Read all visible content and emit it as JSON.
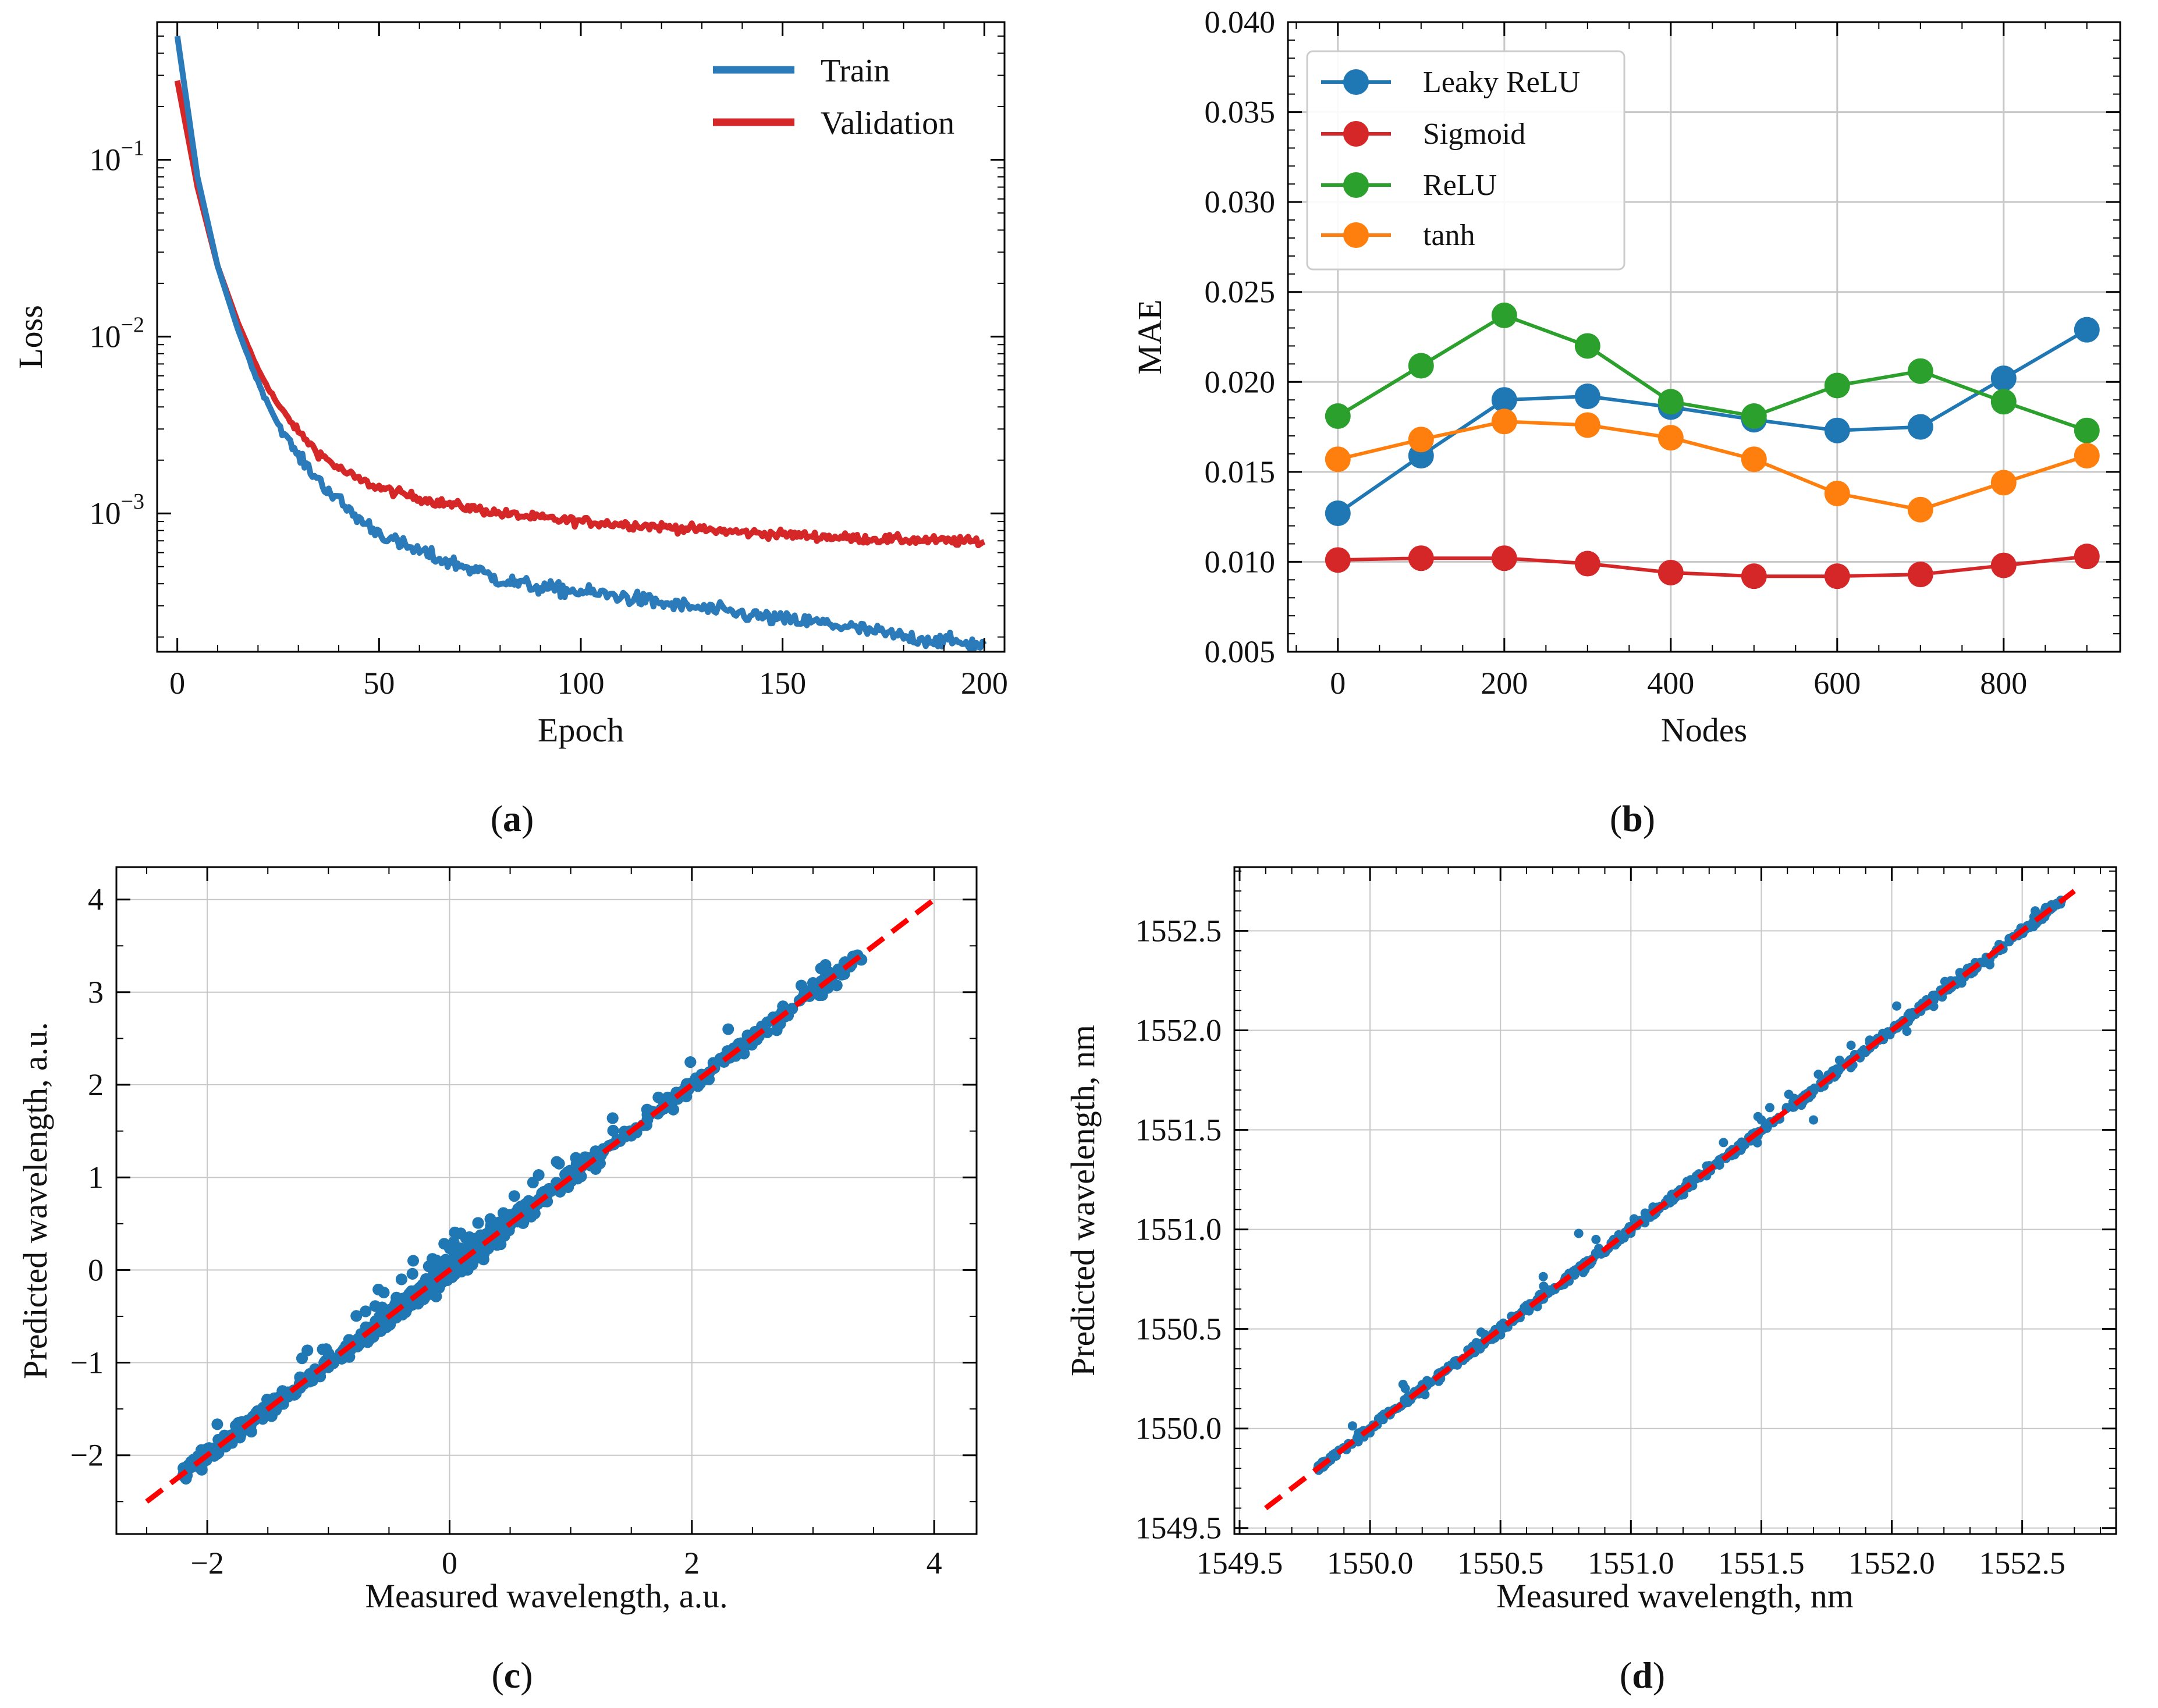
{
  "colors": {
    "train": "#2b7bba",
    "validation": "#d62728",
    "leaky_relu": "#1f77b4",
    "sigmoid": "#d62728",
    "relu": "#2ca02c",
    "tanh": "#ff7f0e",
    "scatter": "#1f77b4",
    "ideal": "#ff0000",
    "grid": "#c8c8c8"
  },
  "chart_data": [
    {
      "id": "a",
      "type": "line",
      "caption_letter": "a",
      "xlabel": "Epoch",
      "ylabel": "Loss",
      "yscale": "log",
      "xlim": [
        -5,
        205
      ],
      "ylim": [
        0.000165,
        0.6
      ],
      "xticks": [
        0,
        50,
        100,
        150,
        200
      ],
      "xtick_labels": [
        "0",
        "50",
        "100",
        "150",
        "200"
      ],
      "yticks": [
        0.1,
        0.01,
        0.001
      ],
      "ytick_base": "10",
      "ytick_exponents": [
        "−1",
        "−2",
        "−3"
      ],
      "grid": false,
      "legend_position": "top-right",
      "series": [
        {
          "name": "Train",
          "x": [
            0,
            5,
            10,
            15,
            20,
            25,
            30,
            35,
            40,
            45,
            50,
            55,
            60,
            65,
            70,
            75,
            80,
            85,
            90,
            95,
            100,
            110,
            120,
            130,
            140,
            150,
            160,
            170,
            180,
            190,
            200
          ],
          "y": [
            0.5,
            0.08,
            0.025,
            0.011,
            0.0055,
            0.0032,
            0.0021,
            0.00155,
            0.00118,
            0.00093,
            0.00078,
            0.00067,
            0.00061,
            0.00055,
            0.00051,
            0.00047,
            0.00042,
            0.0004,
            0.00038,
            0.00037,
            0.00036,
            0.00034,
            0.00031,
            0.00029,
            0.00027,
            0.00025,
            0.00024,
            0.00022,
            0.0002,
            0.00019,
            0.00018
          ]
        },
        {
          "name": "Validation",
          "x": [
            0,
            5,
            10,
            15,
            20,
            25,
            30,
            35,
            40,
            45,
            50,
            55,
            60,
            65,
            70,
            75,
            80,
            85,
            90,
            95,
            100,
            110,
            120,
            130,
            140,
            150,
            160,
            170,
            180,
            190,
            200
          ],
          "y": [
            0.28,
            0.07,
            0.025,
            0.012,
            0.0065,
            0.0041,
            0.0029,
            0.0022,
            0.0018,
            0.00155,
            0.0014,
            0.0013,
            0.00122,
            0.00115,
            0.0011,
            0.00105,
            0.001,
            0.00097,
            0.00094,
            0.00092,
            0.0009,
            0.00087,
            0.00084,
            0.00081,
            0.00078,
            0.00076,
            0.00074,
            0.00072,
            0.00071,
            0.0007,
            0.00069
          ]
        }
      ]
    },
    {
      "id": "b",
      "type": "line",
      "caption_letter": "b",
      "xlabel": "Nodes",
      "ylabel": "MAE",
      "xlim": [
        -60,
        940
      ],
      "ylim": [
        0.005,
        0.04
      ],
      "xticks": [
        0,
        200,
        400,
        600,
        800
      ],
      "xtick_labels": [
        "0",
        "200",
        "400",
        "600",
        "800"
      ],
      "yticks": [
        0.005,
        0.01,
        0.015,
        0.02,
        0.025,
        0.03,
        0.035,
        0.04
      ],
      "ytick_labels": [
        "0.005",
        "0.010",
        "0.015",
        "0.020",
        "0.025",
        "0.030",
        "0.035",
        "0.040"
      ],
      "grid": true,
      "legend_position": "top-left",
      "x": [
        0,
        100,
        200,
        300,
        400,
        500,
        600,
        700,
        800,
        900
      ],
      "series": [
        {
          "name": "Leaky ReLU",
          "values": [
            0.0127,
            0.0159,
            0.019,
            0.0192,
            0.0186,
            0.0179,
            0.0173,
            0.0175,
            0.0202,
            0.0229
          ]
        },
        {
          "name": "Sigmoid",
          "values": [
            0.0101,
            0.0102,
            0.0102,
            0.0099,
            0.0094,
            0.0092,
            0.0092,
            0.0093,
            0.0098,
            0.0103
          ]
        },
        {
          "name": "ReLU",
          "values": [
            0.0181,
            0.0209,
            0.0237,
            0.022,
            0.0189,
            0.0181,
            0.0198,
            0.0206,
            0.0189,
            0.0173
          ]
        },
        {
          "name": "tanh",
          "values": [
            0.0157,
            0.0168,
            0.0178,
            0.0176,
            0.0169,
            0.0157,
            0.0138,
            0.0129,
            0.0144,
            0.0159
          ]
        }
      ]
    },
    {
      "id": "c",
      "type": "scatter",
      "caption_letter": "c",
      "xlabel": "Measured wavelength, a.u.",
      "ylabel": "Predicted wavelength, a.u.",
      "xlim": [
        -2.75,
        4.35
      ],
      "ylim": [
        -2.85,
        4.35
      ],
      "xticks": [
        -2,
        0,
        2,
        4
      ],
      "xtick_labels": [
        "−2",
        "0",
        "2",
        "4"
      ],
      "yticks": [
        -2,
        -1,
        0,
        1,
        2,
        3,
        4
      ],
      "ytick_labels": [
        "−2",
        "−1",
        "0",
        "1",
        "2",
        "3",
        "4"
      ],
      "grid": true,
      "ideal_line": {
        "from": [
          -2.5,
          -2.5
        ],
        "to": [
          4.0,
          4.0
        ]
      },
      "points": {
        "range": [
          -2.2,
          3.4
        ],
        "typical_spread": 0.1,
        "max_spread": 0.35,
        "samples": [
          [
            -2.2,
            -2.22
          ],
          [
            -1.5,
            -1.46
          ],
          [
            -1.0,
            -1.05
          ],
          [
            -0.5,
            -0.45
          ],
          [
            -0.3,
            0.1
          ],
          [
            0.0,
            0.02
          ],
          [
            0.3,
            0.25
          ],
          [
            0.5,
            0.55
          ],
          [
            1.0,
            1.02
          ],
          [
            1.5,
            1.45
          ],
          [
            2.0,
            2.0
          ],
          [
            2.3,
            2.6
          ],
          [
            2.5,
            2.5
          ],
          [
            3.0,
            3.1
          ],
          [
            3.4,
            3.35
          ]
        ]
      }
    },
    {
      "id": "d",
      "type": "scatter",
      "caption_letter": "d",
      "xlabel": "Measured wavelength, nm",
      "ylabel": "Predicted wavelength, nm",
      "xlim": [
        1549.48,
        1552.86
      ],
      "ylim": [
        1549.47,
        1552.82
      ],
      "xticks": [
        1549.5,
        1550.0,
        1550.5,
        1551.0,
        1551.5,
        1552.0,
        1552.5
      ],
      "xtick_labels": [
        "1549.5",
        "1550.0",
        "1550.5",
        "1551.0",
        "1551.5",
        "1552.0",
        "1552.5"
      ],
      "yticks": [
        1549.5,
        1550.0,
        1550.5,
        1551.0,
        1551.5,
        1552.0,
        1552.5
      ],
      "ytick_labels": [
        "1549.5",
        "1550.0",
        "1550.5",
        "1551.0",
        "1551.5",
        "1552.0",
        "1552.5"
      ],
      "grid": true,
      "ideal_line": {
        "from": [
          1549.6,
          1549.6
        ],
        "to": [
          1552.7,
          1552.7
        ]
      },
      "points": {
        "range": [
          1549.8,
          1552.65
        ],
        "typical_spread": 0.025,
        "samples": [
          [
            1549.8,
            1549.8
          ],
          [
            1550.0,
            1550.0
          ],
          [
            1550.2,
            1550.22
          ],
          [
            1550.5,
            1550.5
          ],
          [
            1550.8,
            1550.98
          ],
          [
            1551.0,
            1551.0
          ],
          [
            1551.3,
            1551.32
          ],
          [
            1551.5,
            1551.55
          ],
          [
            1551.7,
            1551.55
          ],
          [
            1551.8,
            1551.85
          ],
          [
            1552.3,
            1552.3
          ],
          [
            1552.55,
            1552.6
          ],
          [
            1552.65,
            1552.65
          ]
        ]
      }
    }
  ]
}
